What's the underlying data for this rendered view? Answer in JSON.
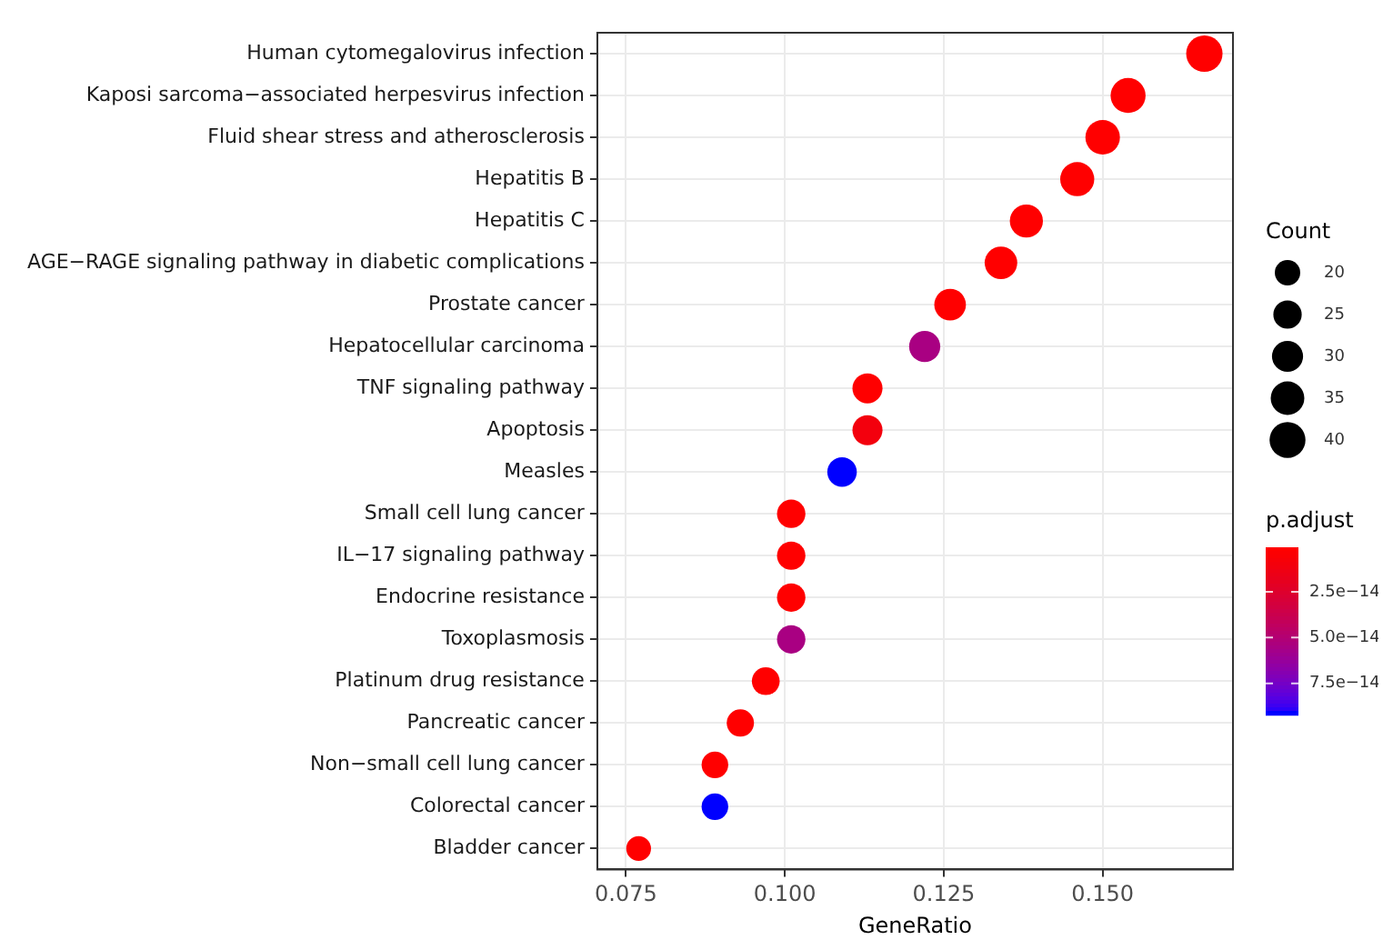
{
  "chart_data": {
    "type": "bubble",
    "xlabel": "GeneRatio",
    "legend_title": "Count",
    "clabel": "p.adjust",
    "categories": [
      "Human cytomegalovirus infection",
      "Kaposi sarcoma−associated herpesvirus infection",
      "Fluid shear stress and atherosclerosis",
      "Hepatitis B",
      "Hepatitis C",
      "AGE−RAGE signaling pathway in diabetic complications",
      "Prostate cancer",
      "Hepatocellular carcinoma",
      "TNF signaling pathway",
      "Apoptosis",
      "Measles",
      "Small cell lung cancer",
      "IL−17 signaling pathway",
      "Endocrine resistance",
      "Toxoplasmosis",
      "Platinum drug resistance",
      "Pancreatic cancer",
      "Non−small cell lung cancer",
      "Colorectal cancer",
      "Bladder cancer"
    ],
    "values": [
      0.166,
      0.154,
      0.15,
      0.146,
      0.138,
      0.134,
      0.126,
      0.122,
      0.113,
      0.113,
      0.109,
      0.101,
      0.101,
      0.101,
      0.101,
      0.097,
      0.093,
      0.089,
      0.089,
      0.077
    ],
    "sizes": [
      41,
      38,
      37,
      36,
      34,
      33,
      31,
      30,
      28,
      28,
      27,
      25,
      25,
      25,
      25,
      24,
      23,
      22,
      22,
      19
    ],
    "size_legend": [
      20,
      25,
      30,
      35,
      40
    ],
    "cvalues": [
      1e-15,
      1e-15,
      1e-15,
      1e-15,
      1e-15,
      1e-15,
      1e-15,
      5.5e-14,
      1e-15,
      1e-14,
      9.2e-14,
      1e-15,
      1e-15,
      1e-15,
      5.5e-14,
      1e-15,
      1e-15,
      1e-15,
      9.2e-14,
      1e-15
    ],
    "clim": [
      7e-16,
      9.2e-14
    ],
    "cticks": [
      {
        "value": 2.5e-14,
        "label": "2.5e−14"
      },
      {
        "value": 5e-14,
        "label": "5.0e−14"
      },
      {
        "value": 7.5e-14,
        "label": "7.5e−14"
      }
    ],
    "xlim": [
      0.0705,
      0.1705
    ],
    "xticks": [
      {
        "value": 0.075,
        "label": "0.075"
      },
      {
        "value": 0.1,
        "label": "0.100"
      },
      {
        "value": 0.125,
        "label": "0.125"
      },
      {
        "value": 0.15,
        "label": "0.150"
      }
    ],
    "grid": true,
    "orientation": "horizontal"
  }
}
